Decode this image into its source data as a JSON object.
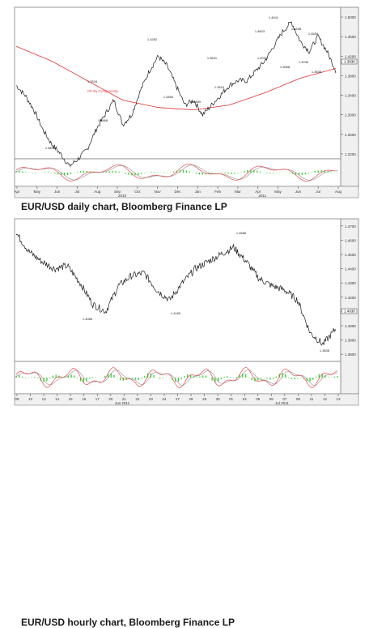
{
  "captions": {
    "daily": "EUR/USD daily chart, Bloomberg Finance LP",
    "hourly": "EUR/USD hourly chart, Bloomberg Finance LP"
  },
  "colors": {
    "price": "#1a1a1a",
    "moving_average": "#e03030",
    "osc_main": "#e05050",
    "osc_signal": "#909090",
    "histogram": "#33cc33",
    "panel_bg": "#ffffff",
    "axis_bg": "#f0f0f0",
    "border": "#808080"
  },
  "chart_data": [
    {
      "type": "line",
      "title": "EUR/USD daily",
      "yticks": [
        1.5,
        1.46,
        1.42,
        1.38,
        1.34,
        1.3,
        1.26,
        1.22
      ],
      "ylim": [
        1.21,
        1.52
      ],
      "xticks": [
        "Apr",
        "May",
        "Jun",
        "Jul",
        "Aug",
        "Sep",
        "Oct",
        "Nov",
        "Dec",
        "Jan",
        "Feb",
        "Mar",
        "Apr",
        "May",
        "Jun",
        "Jul",
        "Aug"
      ],
      "year_labels": [
        "2010",
        "2011"
      ],
      "price_annotations": [
        "1.5876",
        "1.3334",
        "1.2866",
        "1.4282",
        "1.2860",
        "1.2869",
        "1.3641",
        "1.3619",
        "1.4035",
        "1.4603",
        "1.4941",
        "1.4698",
        "1.4584",
        "1.3968",
        "1.4036",
        "1.3838"
      ],
      "moving_average_label": "200 day moving average",
      "last_price_tag": "1.3938",
      "series": [
        {
          "name": "EUR/USD",
          "x": [
            0,
            10,
            20,
            30,
            40,
            50,
            60,
            70,
            80,
            90,
            100,
            110,
            120,
            130,
            140,
            150,
            160,
            170,
            180,
            190,
            200,
            210,
            220,
            230,
            240,
            250,
            260,
            270,
            280,
            290,
            300,
            310,
            320,
            330,
            340,
            350,
            360
          ],
          "values": [
            1.36,
            1.34,
            1.31,
            1.27,
            1.24,
            1.22,
            1.195,
            1.21,
            1.23,
            1.27,
            1.3,
            1.33,
            1.28,
            1.3,
            1.35,
            1.39,
            1.42,
            1.4,
            1.36,
            1.32,
            1.33,
            1.3,
            1.32,
            1.34,
            1.36,
            1.37,
            1.37,
            1.39,
            1.41,
            1.44,
            1.47,
            1.49,
            1.45,
            1.43,
            1.46,
            1.43,
            1.39
          ]
        },
        {
          "name": "200 day moving average",
          "x": [
            0,
            40,
            80,
            120,
            160,
            200,
            240,
            280,
            320,
            360
          ],
          "values": [
            1.44,
            1.41,
            1.37,
            1.33,
            1.315,
            1.31,
            1.32,
            1.345,
            1.375,
            1.395
          ]
        }
      ]
    },
    {
      "type": "line",
      "title": "EUR/USD hourly",
      "yticks": [
        1.47,
        1.46,
        1.45,
        1.44,
        1.43,
        1.42,
        1.41,
        1.4,
        1.39,
        1.38
      ],
      "ylim": [
        1.375,
        1.475
      ],
      "xticks": [
        "09",
        "10",
        "13",
        "14",
        "15",
        "16",
        "17",
        "20",
        "21",
        "22",
        "23",
        "24",
        "27",
        "28",
        "29",
        "30",
        "01",
        "04",
        "05",
        "06",
        "07",
        "08",
        "11",
        "12",
        "13"
      ],
      "month_labels": [
        "Jun 2011",
        "Jul 2011"
      ],
      "price_annotations": [
        "1.4086",
        "1.4169",
        "1.4586",
        "1.3838"
      ],
      "last_price_tag": "1.4030",
      "series": [
        {
          "name": "EUR/USD",
          "x": [
            0,
            8,
            16,
            24,
            32,
            40,
            48,
            56,
            64,
            72,
            80,
            88,
            96,
            104,
            112,
            120,
            128,
            136,
            144,
            152,
            160,
            168,
            176,
            184,
            192,
            200
          ],
          "values": [
            1.465,
            1.452,
            1.445,
            1.44,
            1.442,
            1.43,
            1.415,
            1.41,
            1.428,
            1.435,
            1.437,
            1.425,
            1.418,
            1.43,
            1.44,
            1.445,
            1.45,
            1.455,
            1.445,
            1.433,
            1.428,
            1.425,
            1.418,
            1.395,
            1.387,
            1.398
          ]
        }
      ]
    }
  ]
}
